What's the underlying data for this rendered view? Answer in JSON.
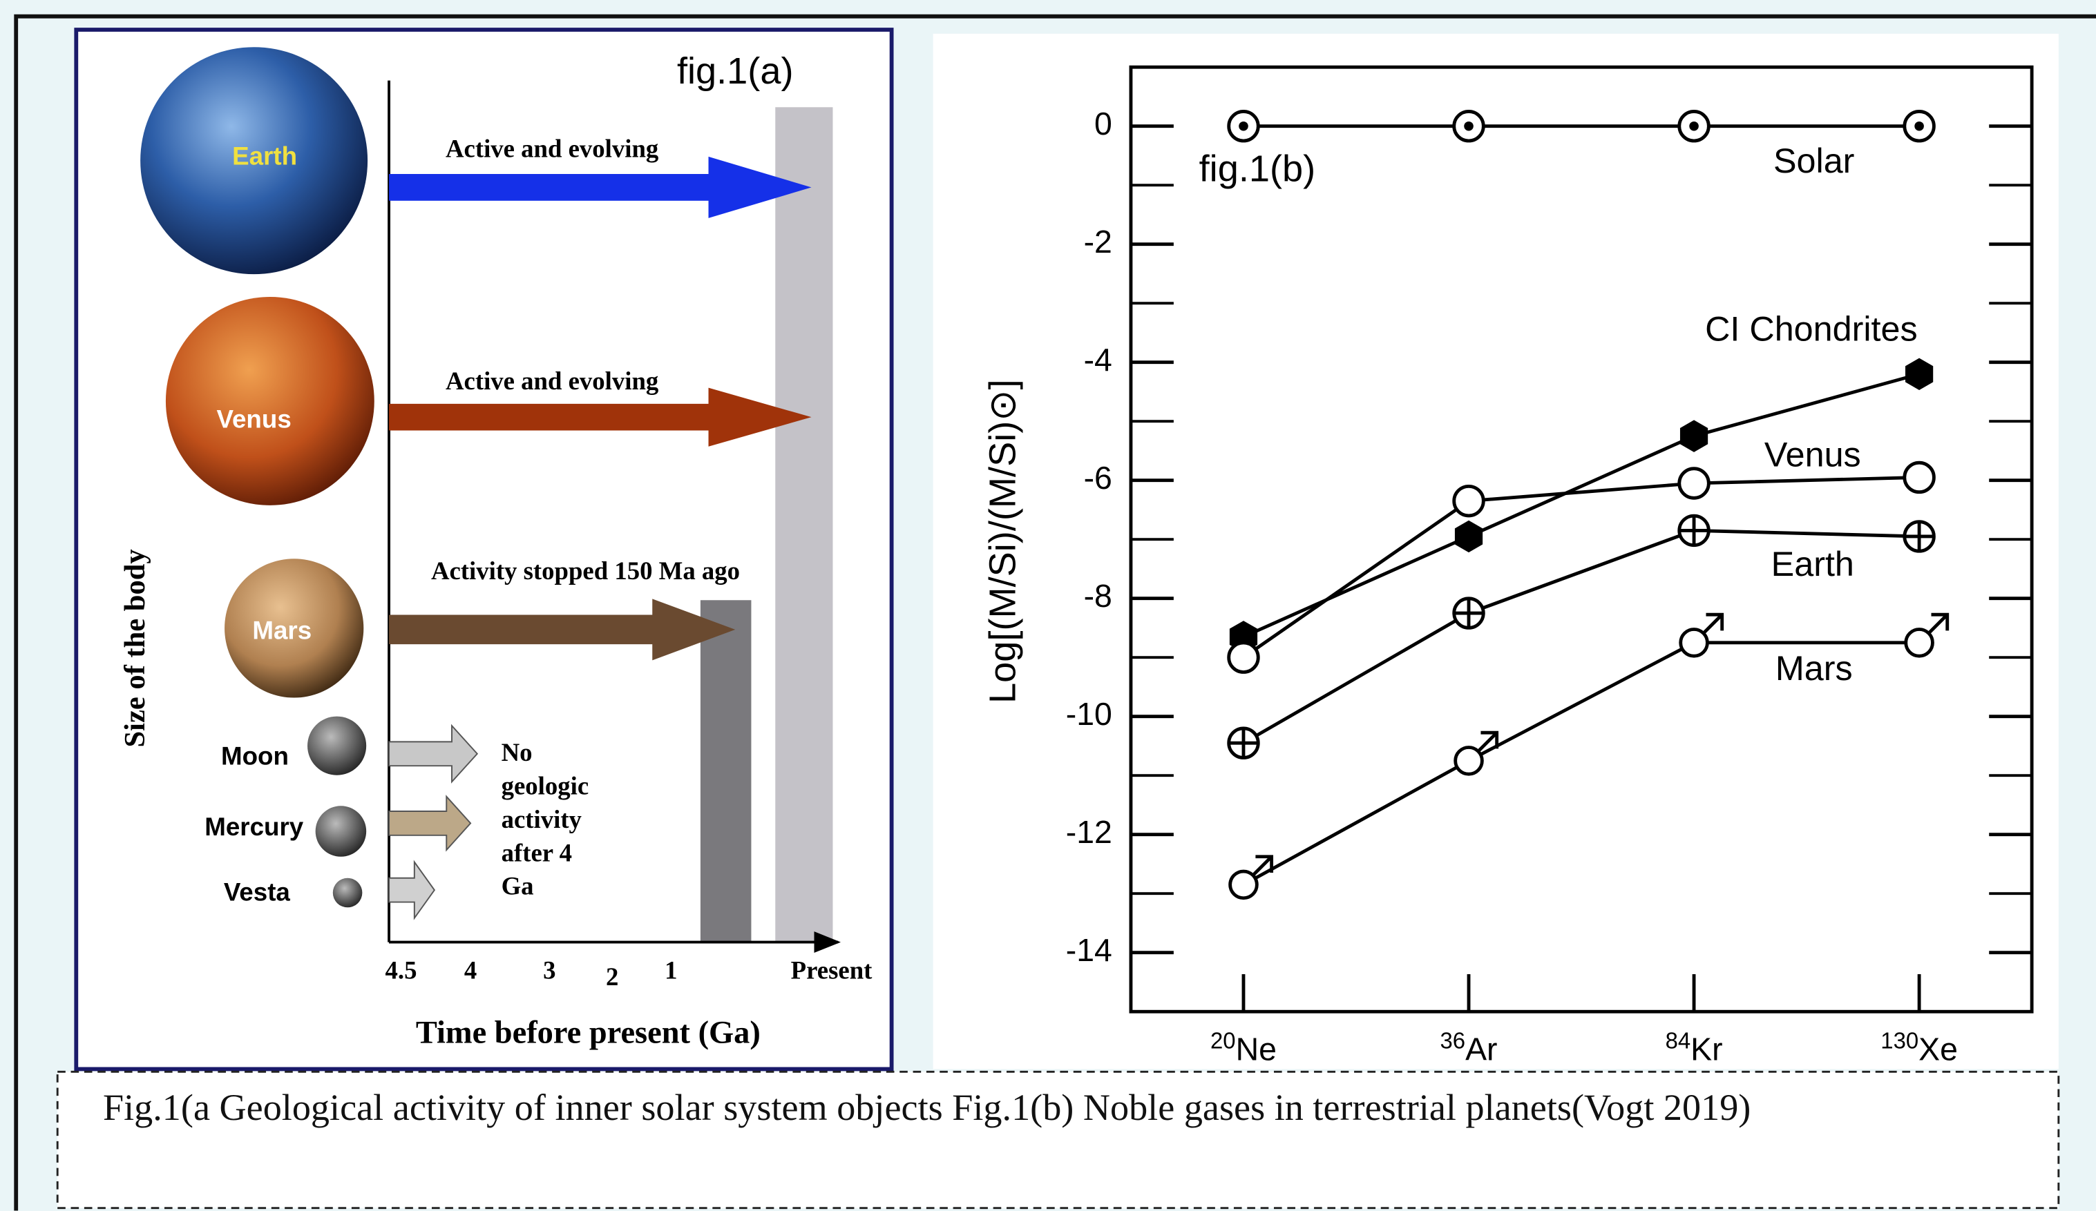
{
  "figure_a": {
    "label": "fig.1(a)",
    "bodies": [
      "Earth",
      "Venus",
      "Mars",
      "Moon",
      "Mercury",
      "Vesta"
    ],
    "arrow_labels": [
      "Active and evolving",
      "Active and evolving",
      "Activity stopped 150 Ma ago"
    ],
    "no_activity_lines": [
      "No",
      "geologic",
      "activity",
      "after 4",
      "Ga"
    ],
    "y_axis_label": "Size of the  body",
    "x_ticks": [
      "4.5",
      "4",
      "3",
      "2",
      "1",
      "Present"
    ],
    "x_axis_label": "Time before present (Ga)"
  },
  "chart_data": {
    "type": "line",
    "annotation": "fig.1(b)",
    "y_label": "Log[(M/Si)/(M/Si)⊙]",
    "categories": [
      "20Ne",
      "36Ar",
      "84Kr",
      "130Xe"
    ],
    "series": [
      {
        "name": "Solar",
        "marker": "sun",
        "values": [
          0,
          0,
          0,
          0
        ]
      },
      {
        "name": "CI Chondrites",
        "marker": "hexagon",
        "values": [
          -8.65,
          -6.95,
          -5.25,
          -4.2
        ]
      },
      {
        "name": "Venus",
        "marker": "circle",
        "values": [
          -9.0,
          -6.35,
          -6.05,
          -5.95
        ]
      },
      {
        "name": "Earth",
        "marker": "earth",
        "values": [
          -10.45,
          -8.25,
          -6.85,
          -6.95
        ]
      },
      {
        "name": "Mars",
        "marker": "mars",
        "values": [
          -12.85,
          -10.75,
          -8.75,
          -8.75
        ]
      }
    ],
    "color": "#000000",
    "ylim": [
      -15,
      1
    ],
    "yticks": [
      -14,
      -12,
      -10,
      -8,
      -6,
      -4,
      -2,
      0
    ],
    "yminorticks": [
      -15,
      -13,
      -11,
      -9,
      -7,
      -5,
      -3,
      -1,
      1
    ]
  },
  "caption": "Fig.1(a Geological activity of inner solar system objects  Fig.1(b) Noble gases in terrestrial planets(Vogt 2019)"
}
